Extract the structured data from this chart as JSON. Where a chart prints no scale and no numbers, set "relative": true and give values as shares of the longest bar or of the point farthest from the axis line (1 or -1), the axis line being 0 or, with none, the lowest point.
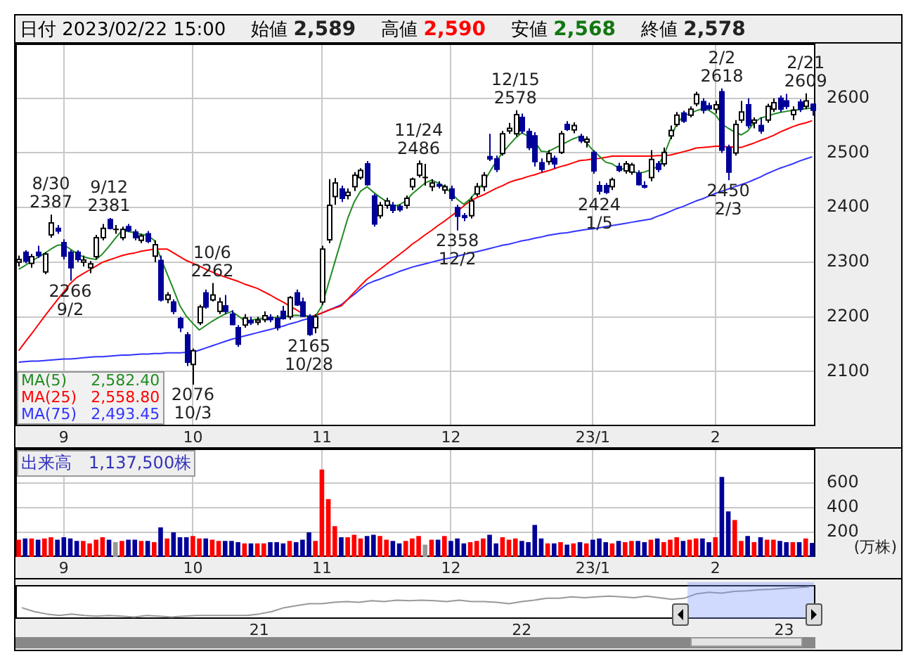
{
  "chart_data": [
    {
      "type": "candlestick",
      "grid": true,
      "legend": "bottom left",
      "ylim": [
        2000,
        2700
      ],
      "colors": [
        "#ffffff",
        "#000099",
        "#ffffff",
        "#000099",
        "#ffffff",
        "#ffffff",
        "#000099",
        "#000099",
        "#000099",
        "#000099",
        "#ffffff",
        "#ffffff",
        "#ffffff",
        "#ffffff",
        "#000099",
        "#000000",
        "#ffffff",
        "#000099",
        "#000099",
        "#ffffff",
        "#000099",
        "#ffffff",
        "#000099",
        "#ffffff",
        "#000099",
        "#000099",
        "#000099",
        "#ffffff",
        "#ffffff",
        "#000099",
        "#ffffff",
        "#ffffff",
        "#000099",
        "#000099",
        "#000099",
        "#ffffff",
        "#000099",
        "#ffffff",
        "#ffffff",
        "#000099",
        "#000099",
        "#000099",
        "#ffffff",
        "#000099",
        "#000099",
        "#000099",
        "#ffffff",
        "#ffffff",
        "#ffffff",
        "#ffffff",
        "#000099",
        "#ffffff",
        "#ffffff",
        "#ffffff",
        "#000099",
        "#000099",
        "#ffffff",
        "#ffffff",
        "#000099",
        "#000099",
        "#ffffff",
        "#ffffff",
        "#ffffff",
        "#000000",
        "#ffffff",
        "#000099",
        "#ffffff",
        "#000099",
        "#000099",
        "#000099",
        "#ffffff",
        "#ffffff",
        "#ffffff",
        "#000099",
        "#000099",
        "#ffffff",
        "#ffffff",
        "#ffffff",
        "#000099",
        "#000099",
        "#000099",
        "#000099",
        "#ffffff",
        "#000099",
        "#ffffff",
        "#000099",
        "#ffffff",
        "#000099",
        "#ffffff",
        "#000099",
        "#000099",
        "#000099",
        "#ffffff",
        "#000099",
        "#ffffff",
        "#ffffff",
        "#000099",
        "#000099",
        "#ffffff",
        "#000099",
        "#ffffff",
        "#ffffff",
        "#ffffff",
        "#000099",
        "#ffffff",
        "#ffffff",
        "#000099",
        "#000099",
        "#ffffff",
        "#000099",
        "#000099",
        "#ffffff",
        "#ffffff",
        "#000099",
        "#ffffff",
        "#000099",
        "#ffffff",
        "#ffffff",
        "#000099",
        "#000099",
        "#ffffff",
        "#000099",
        "#ffffff",
        "#000099"
      ],
      "yticks": [
        2100,
        2200,
        2300,
        2400,
        2500,
        2600
      ],
      "annotations": [
        "日付 2023/02/22 15:00",
        "始値 2,589",
        "高値 2,590",
        "安値 2,568",
        "終値 2,578",
        {
          "text": "8/30 2387",
          "y": 2387
        },
        {
          "text": "2266 9/2",
          "y": 2266
        },
        {
          "text": "9/12 2381",
          "y": 2381
        },
        {
          "text": "2076 10/3",
          "y": 2076
        },
        {
          "text": "10/6 2262",
          "y": 2262
        },
        {
          "text": "2165 10/28",
          "y": 2165
        },
        {
          "text": "11/24 2486",
          "y": 2486
        },
        {
          "text": "2358 12/2",
          "y": 2358
        },
        {
          "text": "12/15 2578",
          "y": 2578
        },
        {
          "text": "2424 1/5",
          "y": 2424
        },
        {
          "text": "2/2 2618",
          "y": 2618
        },
        {
          "text": "2450 2/3",
          "y": 2450
        },
        {
          "text": "2/21 2609",
          "y": 2609
        }
      ],
      "categories": [
        null,
        null,
        null,
        null,
        null,
        null,
        null,
        "9",
        null,
        null,
        null,
        null,
        null,
        null,
        null,
        null,
        null,
        null,
        null,
        null,
        null,
        null,
        null,
        null,
        null,
        null,
        null,
        "10",
        null,
        null,
        null,
        null,
        null,
        null,
        null,
        null,
        null,
        null,
        null,
        null,
        null,
        null,
        null,
        null,
        null,
        null,
        null,
        "11",
        null,
        null,
        null,
        null,
        null,
        null,
        null,
        null,
        null,
        null,
        null,
        null,
        null,
        null,
        null,
        null,
        null,
        null,
        null,
        "12",
        null,
        null,
        null,
        null,
        null,
        null,
        null,
        null,
        null,
        null,
        null,
        null,
        null,
        null,
        null,
        null,
        null,
        null,
        null,
        null,
        null,
        "23/1",
        null,
        null,
        null,
        null,
        null,
        null,
        null,
        null,
        null,
        null,
        null,
        null,
        null,
        null,
        null,
        null,
        null,
        null,
        "2",
        null,
        null,
        null,
        null,
        null,
        null,
        null,
        null,
        null,
        null,
        null,
        null,
        null,
        null,
        null
      ],
      "ohlc": [
        [
          2300,
          2312,
          2292,
          2305
        ],
        [
          2318,
          2322,
          2298,
          2302
        ],
        [
          2298,
          2315,
          2290,
          2310
        ],
        [
          2318,
          2330,
          2308,
          2312
        ],
        [
          2282,
          2318,
          2278,
          2315
        ],
        [
          2350,
          2387,
          2345,
          2372
        ],
        [
          2362,
          2368,
          2352,
          2357
        ],
        [
          2336,
          2342,
          2305,
          2311
        ],
        [
          2318,
          2322,
          2266,
          2290
        ],
        [
          2318,
          2322,
          2300,
          2305
        ],
        [
          2300,
          2312,
          2292,
          2304
        ],
        [
          2290,
          2302,
          2280,
          2297
        ],
        [
          2310,
          2350,
          2305,
          2345
        ],
        [
          2345,
          2370,
          2340,
          2362
        ],
        [
          2378,
          2381,
          2360,
          2362
        ],
        [
          2360,
          2368,
          2352,
          2360
        ],
        [
          2345,
          2365,
          2340,
          2360
        ],
        [
          2365,
          2370,
          2355,
          2358
        ],
        [
          2355,
          2360,
          2340,
          2345
        ],
        [
          2340,
          2352,
          2335,
          2348
        ],
        [
          2352,
          2357,
          2335,
          2338
        ],
        [
          2311,
          2340,
          2300,
          2332
        ],
        [
          2303,
          2312,
          2228,
          2231
        ],
        [
          2232,
          2245,
          2225,
          2240
        ],
        [
          2227,
          2232,
          2205,
          2210
        ],
        [
          2197,
          2200,
          2172,
          2180
        ],
        [
          2167,
          2172,
          2110,
          2117
        ],
        [
          2113,
          2142,
          2076,
          2138
        ],
        [
          2189,
          2222,
          2185,
          2218
        ],
        [
          2244,
          2250,
          2215,
          2218
        ],
        [
          2231,
          2262,
          2228,
          2240
        ],
        [
          2210,
          2235,
          2205,
          2227
        ],
        [
          2220,
          2240,
          2205,
          2210
        ],
        [
          2205,
          2212,
          2185,
          2186
        ],
        [
          2180,
          2185,
          2145,
          2150
        ],
        [
          2185,
          2205,
          2180,
          2198
        ],
        [
          2193,
          2200,
          2185,
          2189
        ],
        [
          2190,
          2200,
          2185,
          2194
        ],
        [
          2195,
          2210,
          2190,
          2202
        ],
        [
          2199,
          2205,
          2190,
          2195
        ],
        [
          2197,
          2203,
          2175,
          2180
        ],
        [
          2210,
          2220,
          2195,
          2197
        ],
        [
          2200,
          2238,
          2195,
          2235
        ],
        [
          2244,
          2250,
          2220,
          2222
        ],
        [
          2227,
          2235,
          2200,
          2201
        ],
        [
          2201,
          2205,
          2165,
          2168
        ],
        [
          2180,
          2205,
          2170,
          2200
        ],
        [
          2227,
          2330,
          2222,
          2324
        ],
        [
          2341,
          2452,
          2335,
          2404
        ],
        [
          2420,
          2454,
          2405,
          2445
        ],
        [
          2434,
          2440,
          2410,
          2417
        ],
        [
          2422,
          2435,
          2415,
          2428
        ],
        [
          2438,
          2465,
          2430,
          2459
        ],
        [
          2455,
          2472,
          2451,
          2468
        ],
        [
          2480,
          2485,
          2440,
          2442
        ],
        [
          2421,
          2425,
          2365,
          2370
        ],
        [
          2385,
          2410,
          2380,
          2404
        ],
        [
          2404,
          2418,
          2398,
          2412
        ],
        [
          2404,
          2410,
          2390,
          2395
        ],
        [
          2402,
          2406,
          2392,
          2396
        ],
        [
          2404,
          2422,
          2398,
          2417
        ],
        [
          2438,
          2455,
          2432,
          2452
        ],
        [
          2459,
          2486,
          2455,
          2480
        ],
        [
          2455,
          2480,
          2440,
          2455
        ],
        [
          2438,
          2452,
          2430,
          2445
        ],
        [
          2442,
          2448,
          2435,
          2440
        ],
        [
          2432,
          2442,
          2425,
          2438
        ],
        [
          2434,
          2440,
          2412,
          2417
        ],
        [
          2400,
          2405,
          2358,
          2384
        ],
        [
          2385,
          2390,
          2375,
          2382
        ],
        [
          2385,
          2420,
          2380,
          2412
        ],
        [
          2425,
          2445,
          2420,
          2438
        ],
        [
          2438,
          2465,
          2430,
          2459
        ],
        [
          2493,
          2535,
          2485,
          2489
        ],
        [
          2489,
          2495,
          2465,
          2470
        ],
        [
          2499,
          2540,
          2495,
          2535
        ],
        [
          2540,
          2555,
          2535,
          2545
        ],
        [
          2535,
          2578,
          2530,
          2570
        ],
        [
          2565,
          2572,
          2535,
          2540
        ],
        [
          2539,
          2545,
          2505,
          2510
        ],
        [
          2531,
          2538,
          2475,
          2484
        ],
        [
          2482,
          2490,
          2465,
          2470
        ],
        [
          2484,
          2505,
          2478,
          2499
        ],
        [
          2490,
          2495,
          2472,
          2480
        ],
        [
          2501,
          2540,
          2498,
          2535
        ],
        [
          2552,
          2558,
          2540,
          2543
        ],
        [
          2542,
          2556,
          2536,
          2550
        ],
        [
          2530,
          2535,
          2518,
          2522
        ],
        [
          2520,
          2530,
          2510,
          2525
        ],
        [
          2501,
          2505,
          2462,
          2467
        ],
        [
          2440,
          2448,
          2424,
          2430
        ],
        [
          2440,
          2445,
          2425,
          2428
        ],
        [
          2438,
          2455,
          2432,
          2451
        ],
        [
          2475,
          2482,
          2465,
          2468
        ],
        [
          2467,
          2485,
          2462,
          2480
        ],
        [
          2465,
          2482,
          2460,
          2478
        ],
        [
          2463,
          2468,
          2440,
          2442
        ],
        [
          2440,
          2448,
          2435,
          2438
        ],
        [
          2455,
          2505,
          2448,
          2488
        ],
        [
          2480,
          2485,
          2465,
          2470
        ],
        [
          2480,
          2510,
          2475,
          2501
        ],
        [
          2531,
          2550,
          2525,
          2541
        ],
        [
          2552,
          2575,
          2548,
          2569
        ],
        [
          2573,
          2577,
          2555,
          2558
        ],
        [
          2569,
          2585,
          2565,
          2580
        ],
        [
          2590,
          2612,
          2585,
          2607
        ],
        [
          2594,
          2600,
          2572,
          2578
        ],
        [
          2586,
          2592,
          2578,
          2581
        ],
        [
          2580,
          2595,
          2572,
          2588
        ],
        [
          2612,
          2618,
          2500,
          2505
        ],
        [
          2510,
          2515,
          2450,
          2465
        ],
        [
          2500,
          2560,
          2495,
          2552
        ],
        [
          2560,
          2595,
          2555,
          2575
        ],
        [
          2588,
          2600,
          2545,
          2550
        ],
        [
          2555,
          2565,
          2545,
          2560
        ],
        [
          2550,
          2565,
          2535,
          2540
        ],
        [
          2560,
          2590,
          2555,
          2585
        ],
        [
          2580,
          2600,
          2575,
          2592
        ],
        [
          2600,
          2605,
          2575,
          2580
        ],
        [
          2595,
          2608,
          2580,
          2585
        ],
        [
          2570,
          2585,
          2560,
          2578
        ],
        [
          2593,
          2598,
          2575,
          2580
        ],
        [
          2585,
          2609,
          2580,
          2595
        ],
        [
          2589,
          2590,
          2568,
          2578
        ]
      ],
      "series": [
        {
          "name": "MA(5) 2,582.40",
          "type": "line",
          "color": "#228b22",
          "values": [
            2287,
            2294,
            2302,
            2309,
            2316,
            2324,
            2331,
            2332,
            2324,
            2316,
            2310,
            2307,
            2305,
            2315,
            2329,
            2344,
            2358,
            2356,
            2354,
            2351,
            2349,
            2340,
            2308,
            2279,
            2250,
            2220,
            2201,
            2188,
            2176,
            2184,
            2192,
            2199,
            2205,
            2210,
            2202,
            2193,
            2194,
            2196,
            2197,
            2198,
            2199,
            2200,
            2202,
            2203,
            2202,
            2201,
            2201,
            2220,
            2260,
            2300,
            2340,
            2380,
            2410,
            2430,
            2438,
            2428,
            2419,
            2411,
            2402,
            2405,
            2412,
            2425,
            2435,
            2445,
            2450,
            2445,
            2439,
            2427,
            2415,
            2406,
            2416,
            2430,
            2444,
            2465,
            2484,
            2500,
            2514,
            2527,
            2537,
            2530,
            2521,
            2503,
            2502,
            2508,
            2514,
            2520,
            2526,
            2530,
            2519,
            2505,
            2494,
            2483,
            2480,
            2472,
            2470,
            2467,
            2463,
            2465,
            2469,
            2475,
            2495,
            2525,
            2553,
            2567,
            2572,
            2577,
            2581,
            2578,
            2570,
            2553,
            2545,
            2538,
            2533,
            2540,
            2555,
            2564,
            2567,
            2571,
            2574,
            2576,
            2578,
            2579,
            2581,
            2582
          ]
        },
        {
          "name": "MA(25) 2,558.80",
          "type": "line",
          "color": "#ff0000",
          "values": [
            2138,
            2154,
            2169,
            2185,
            2201,
            2216,
            2231,
            2246,
            2261,
            2272,
            2279,
            2286,
            2293,
            2300,
            2304,
            2308,
            2312,
            2315,
            2317,
            2320,
            2322,
            2324,
            2324,
            2324,
            2317,
            2310,
            2303,
            2298,
            2293,
            2287,
            2282,
            2277,
            2273,
            2269,
            2265,
            2260,
            2256,
            2252,
            2246,
            2240,
            2233,
            2227,
            2220,
            2213,
            2206,
            2199,
            2203,
            2207,
            2212,
            2216,
            2220,
            2232,
            2245,
            2257,
            2269,
            2278,
            2287,
            2296,
            2305,
            2314,
            2323,
            2333,
            2341,
            2350,
            2358,
            2367,
            2375,
            2384,
            2393,
            2403,
            2412,
            2418,
            2423,
            2429,
            2435,
            2440,
            2446,
            2450,
            2453,
            2457,
            2460,
            2464,
            2467,
            2471,
            2475,
            2478,
            2482,
            2486,
            2487,
            2489,
            2490,
            2492,
            2494,
            2494,
            2494,
            2494,
            2494,
            2494,
            2494,
            2495,
            2495,
            2496,
            2499,
            2502,
            2505,
            2509,
            2510,
            2511,
            2512,
            2512,
            2511,
            2511,
            2510,
            2514,
            2518,
            2523,
            2527,
            2532,
            2538,
            2543,
            2548,
            2552,
            2555,
            2559
          ]
        },
        {
          "name": "MA(75) 2,493.45",
          "type": "line",
          "color": "#3333ff",
          "values": [
            2117,
            2118,
            2119,
            2119,
            2120,
            2121,
            2122,
            2123,
            2123,
            2124,
            2125,
            2126,
            2127,
            2127,
            2128,
            2129,
            2130,
            2130,
            2131,
            2132,
            2132,
            2133,
            2133,
            2134,
            2134,
            2134,
            2135,
            2135,
            2139,
            2143,
            2147,
            2151,
            2155,
            2159,
            2162,
            2165,
            2168,
            2171,
            2174,
            2177,
            2180,
            2183,
            2187,
            2190,
            2194,
            2197,
            2202,
            2207,
            2212,
            2217,
            2222,
            2232,
            2241,
            2251,
            2260,
            2265,
            2269,
            2274,
            2278,
            2283,
            2287,
            2291,
            2294,
            2297,
            2300,
            2303,
            2306,
            2308,
            2311,
            2314,
            2317,
            2319,
            2322,
            2325,
            2328,
            2331,
            2333,
            2336,
            2339,
            2341,
            2344,
            2346,
            2349,
            2351,
            2353,
            2354,
            2356,
            2358,
            2360,
            2361,
            2363,
            2365,
            2367,
            2369,
            2371,
            2373,
            2375,
            2377,
            2379,
            2384,
            2388,
            2393,
            2398,
            2402,
            2407,
            2412,
            2416,
            2421,
            2426,
            2430,
            2434,
            2438,
            2442,
            2446,
            2451,
            2456,
            2462,
            2467,
            2472,
            2476,
            2480,
            2485,
            2489,
            2493
          ]
        }
      ]
    },
    {
      "type": "bar",
      "title": "出来高　1,137,500株",
      "ylabel": "(万株)",
      "grid": true,
      "ylim": [
        0,
        880
      ],
      "yticks": [
        200,
        400,
        600
      ],
      "categories": [
        null,
        null,
        null,
        null,
        null,
        null,
        null,
        "9",
        null,
        null,
        null,
        null,
        null,
        null,
        null,
        null,
        null,
        null,
        null,
        null,
        null,
        null,
        null,
        null,
        null,
        null,
        null,
        "10",
        null,
        null,
        null,
        null,
        null,
        null,
        null,
        null,
        null,
        null,
        null,
        null,
        null,
        null,
        null,
        null,
        null,
        null,
        null,
        "11",
        null,
        null,
        null,
        null,
        null,
        null,
        null,
        null,
        null,
        null,
        null,
        null,
        null,
        null,
        null,
        null,
        null,
        null,
        null,
        "12",
        null,
        null,
        null,
        null,
        null,
        null,
        null,
        null,
        null,
        null,
        null,
        null,
        null,
        null,
        null,
        null,
        null,
        null,
        null,
        null,
        null,
        "23/1",
        null,
        null,
        null,
        null,
        null,
        null,
        null,
        null,
        null,
        null,
        null,
        null,
        null,
        null,
        null,
        null,
        null,
        null,
        "2",
        null,
        null,
        null,
        null,
        null,
        null,
        null,
        null,
        null,
        null,
        null,
        null,
        null,
        null,
        null
      ],
      "values": [
        140,
        150,
        150,
        140,
        150,
        160,
        140,
        160,
        150,
        130,
        130,
        110,
        140,
        160,
        140,
        120,
        130,
        140,
        140,
        130,
        130,
        120,
        240,
        150,
        200,
        160,
        160,
        170,
        150,
        150,
        140,
        130,
        130,
        130,
        120,
        110,
        110,
        110,
        110,
        120,
        120,
        110,
        130,
        120,
        140,
        200,
        130,
        710,
        470,
        250,
        160,
        160,
        180,
        150,
        170,
        180,
        170,
        140,
        130,
        110,
        130,
        150,
        170,
        100,
        140,
        140,
        170,
        130,
        150,
        110,
        120,
        130,
        150,
        180,
        110,
        160,
        140,
        150,
        130,
        120,
        260,
        150,
        110,
        110,
        120,
        100,
        110,
        120,
        110,
        140,
        150,
        120,
        110,
        130,
        120,
        130,
        130,
        120,
        140,
        150,
        120,
        140,
        160,
        130,
        140,
        150,
        150,
        120,
        160,
        650,
        370,
        300,
        130,
        170,
        120,
        160,
        140,
        140,
        130,
        120,
        120,
        120,
        150,
        113.75
      ],
      "colors": [
        "#ff0000",
        "#000099",
        "#ff0000",
        "#000099",
        "#ff0000",
        "#ff0000",
        "#000099",
        "#000099",
        "#000099",
        "#000099",
        "#ff0000",
        "#ff0000",
        "#ff0000",
        "#ff0000",
        "#000099",
        "#999999",
        "#ff0000",
        "#000099",
        "#000099",
        "#ff0000",
        "#000099",
        "#ff0000",
        "#000099",
        "#ff0000",
        "#000099",
        "#000099",
        "#000099",
        "#ff0000",
        "#ff0000",
        "#000099",
        "#ff0000",
        "#ff0000",
        "#000099",
        "#000099",
        "#000099",
        "#ff0000",
        "#000099",
        "#ff0000",
        "#ff0000",
        "#000099",
        "#000099",
        "#000099",
        "#ff0000",
        "#000099",
        "#000099",
        "#000099",
        "#ff0000",
        "#ff0000",
        "#ff0000",
        "#ff0000",
        "#000099",
        "#ff0000",
        "#ff0000",
        "#ff0000",
        "#000099",
        "#000099",
        "#ff0000",
        "#ff0000",
        "#000099",
        "#000099",
        "#ff0000",
        "#ff0000",
        "#ff0000",
        "#999999",
        "#ff0000",
        "#000099",
        "#ff0000",
        "#000099",
        "#000099",
        "#000099",
        "#ff0000",
        "#ff0000",
        "#ff0000",
        "#000099",
        "#000099",
        "#ff0000",
        "#ff0000",
        "#ff0000",
        "#000099",
        "#000099",
        "#000099",
        "#000099",
        "#ff0000",
        "#000099",
        "#ff0000",
        "#000099",
        "#ff0000",
        "#000099",
        "#ff0000",
        "#000099",
        "#000099",
        "#000099",
        "#ff0000",
        "#000099",
        "#ff0000",
        "#ff0000",
        "#000099",
        "#000099",
        "#ff0000",
        "#000099",
        "#ff0000",
        "#ff0000",
        "#ff0000",
        "#000099",
        "#ff0000",
        "#ff0000",
        "#000099",
        "#000099",
        "#ff0000",
        "#000099",
        "#000099",
        "#ff0000",
        "#ff0000",
        "#000099",
        "#ff0000",
        "#000099",
        "#ff0000",
        "#ff0000",
        "#000099",
        "#000099",
        "#ff0000",
        "#000099",
        "#ff0000",
        "#000099"
      ]
    },
    {
      "type": "line",
      "relative": true,
      "color": "#999999",
      "tick_labels": "x",
      "categories": [
        null,
        null,
        null,
        null,
        null,
        null,
        null,
        null,
        null,
        null,
        null,
        null,
        null,
        null,
        null,
        null,
        null,
        null,
        null,
        "21",
        null,
        null,
        null,
        null,
        null,
        null,
        null,
        null,
        null,
        null,
        null,
        null,
        null,
        null,
        null,
        null,
        null,
        null,
        null,
        null,
        "22",
        null,
        null,
        null,
        null,
        null,
        null,
        null,
        null,
        null,
        null,
        null,
        null,
        null,
        null,
        null,
        null,
        null,
        null,
        null,
        null,
        "23",
        null,
        null
      ],
      "values": [
        0.31,
        0.18,
        0.1,
        0.05,
        0.1,
        0.05,
        0.03,
        0.05,
        0.03,
        0,
        0.05,
        0.03,
        0,
        0.03,
        0.05,
        0.05,
        0.05,
        0.05,
        0.05,
        0.1,
        0.18,
        0.31,
        0.38,
        0.44,
        0.44,
        0.49,
        0.51,
        0.49,
        0.54,
        0.51,
        0.56,
        0.54,
        0.56,
        0.54,
        0.51,
        0.56,
        0.51,
        0.51,
        0.49,
        0.44,
        0.51,
        0.56,
        0.62,
        0.62,
        0.67,
        0.64,
        0.67,
        0.69,
        0.67,
        0.64,
        0.69,
        0.64,
        0.59,
        0.62,
        0.77,
        0.82,
        0.79,
        0.85,
        0.87,
        0.9,
        0.92,
        0.95,
        0.97,
        1
      ]
    }
  ]
}
